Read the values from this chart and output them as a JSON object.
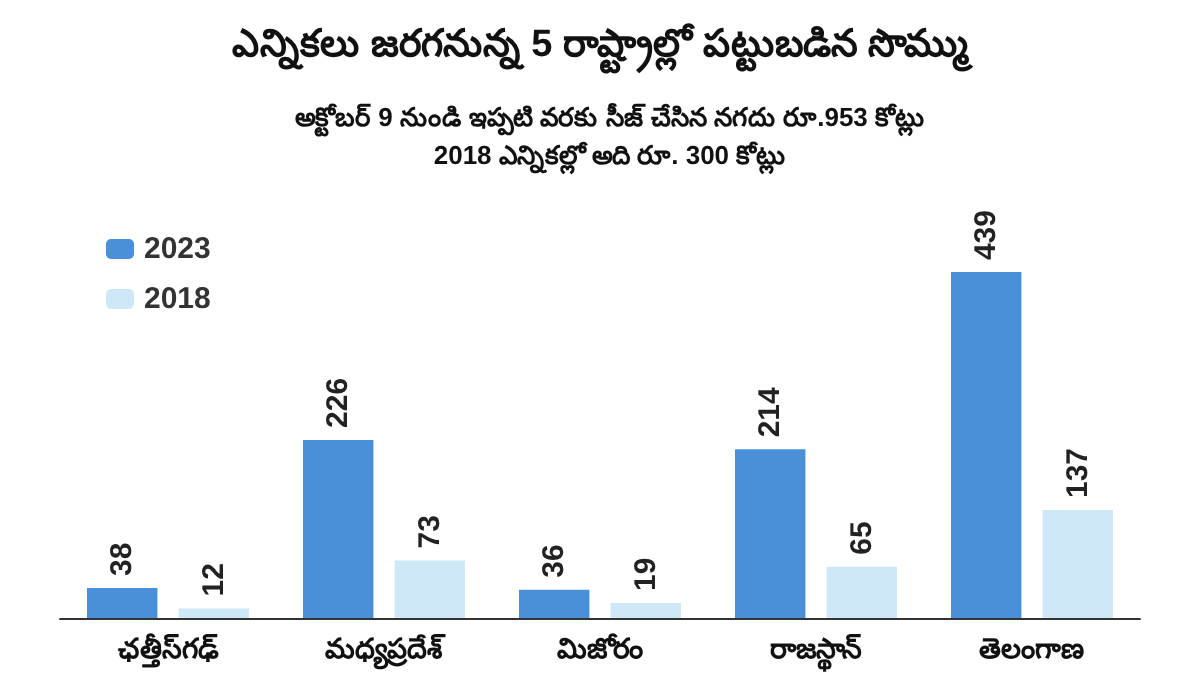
{
  "chart_data": {
    "type": "bar",
    "title": "ఎన్నికలు జరగనున్న 5 రాష్ట్రాల్లో పట్టుబడిన సొమ్ము",
    "subtitle": "అక్టోబర్ 9 నుండి ఇప్పటి వరకు సీజ్ చేసిన నగదు రూ.953 కోట్లు\n2018 ఎన్నికల్లో అది రూ. 300 కోట్లు",
    "categories": [
      "ఛత్తీస్‌గఢ్",
      "మధ్యప్రదేశ్",
      "మిజోరం",
      "రాజస్థాన్",
      "తెలంగాణ"
    ],
    "series": [
      {
        "name": "2023",
        "color": "#4a90d9",
        "values": [
          38,
          226,
          36,
          214,
          439
        ]
      },
      {
        "name": "2018",
        "color": "#cfe8f8",
        "values": [
          12,
          73,
          19,
          65,
          137
        ]
      }
    ],
    "data_labels": true,
    "legend": "top left"
  }
}
